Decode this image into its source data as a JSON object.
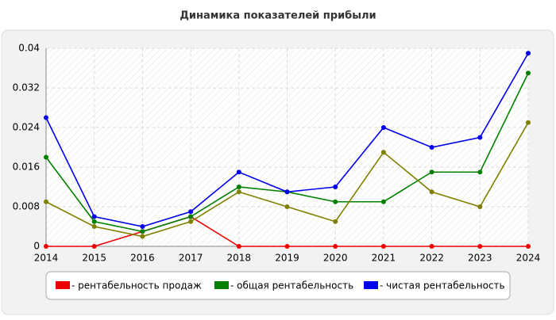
{
  "chart_data": {
    "type": "line",
    "title": "Динамика показателей прибыли",
    "x": [
      2014,
      2015,
      2016,
      2017,
      2018,
      2019,
      2020,
      2021,
      2022,
      2023,
      2024
    ],
    "xlim": [
      2014,
      2024
    ],
    "xticks": [
      2014,
      2015,
      2016,
      2017,
      2018,
      2019,
      2020,
      2021,
      2022,
      2023,
      2024
    ],
    "ylim": [
      0,
      0.04
    ],
    "yticks": [
      0,
      0.008,
      0.016,
      0.024,
      0.032,
      0.04
    ],
    "grid": true,
    "series": [
      {
        "name": "- рентабельность продаж",
        "color": "#ee0000",
        "values": [
          0,
          0,
          0.003,
          0.006,
          0,
          0,
          0,
          0,
          0,
          0,
          0
        ]
      },
      {
        "name": "- общая рентабельность",
        "color": "#008000",
        "values": [
          0.018,
          0.005,
          0.003,
          0.006,
          0.012,
          0.011,
          0.009,
          0.009,
          0.015,
          0.015,
          0.035
        ]
      },
      {
        "name": "- чистая рентабельность",
        "color": "#0000ee",
        "values": [
          0.026,
          0.006,
          0.004,
          0.007,
          0.015,
          0.011,
          0.012,
          0.024,
          0.02,
          0.022,
          0.039
        ]
      },
      {
        "color": "#808000",
        "values": [
          0.009,
          0.004,
          0.002,
          0.005,
          0.011,
          0.008,
          0.005,
          0.019,
          0.011,
          0.008,
          0.025
        ]
      }
    ]
  }
}
